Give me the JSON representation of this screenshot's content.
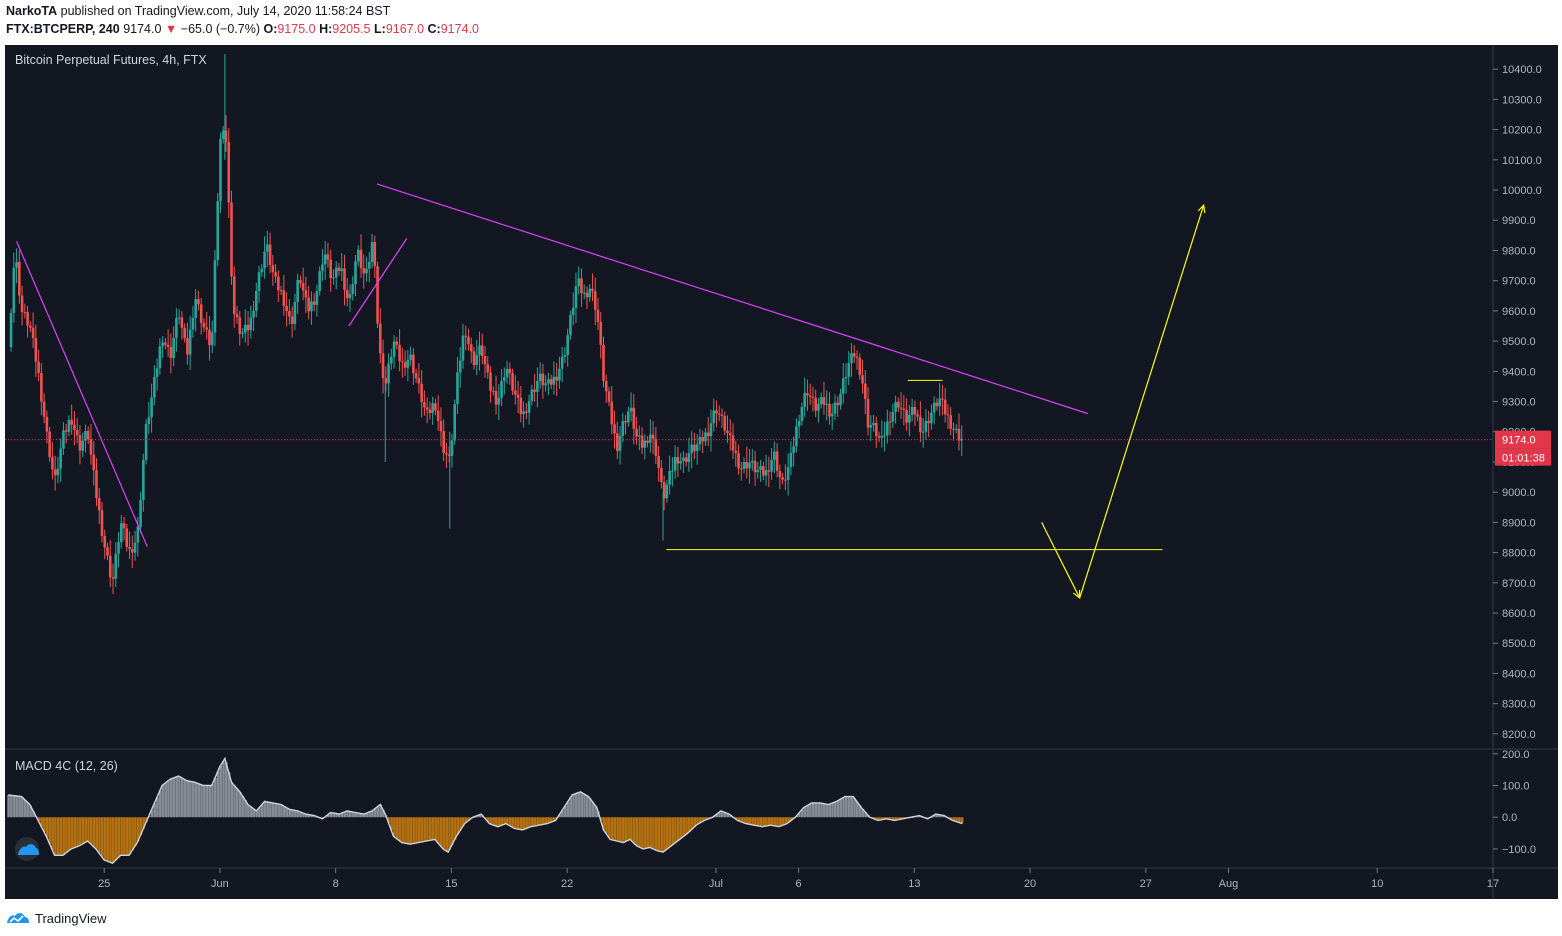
{
  "header": {
    "author": "NarkoTA",
    "published_text": "published on TradingView.com, July 14, 2020 11:58:24 BST",
    "symbol": "FTX:BTCPERP, 240",
    "last_price": "9174.0",
    "change": "−65.0 (−0.7%)",
    "o_label": "O:",
    "o_value": "9175.0",
    "h_label": "H:",
    "h_value": "9205.5",
    "l_label": "L:",
    "l_value": "9167.0",
    "c_label": "C:",
    "c_value": "9174.0"
  },
  "footer": {
    "brand": "TradingView"
  },
  "colors": {
    "background": "#131722",
    "up_candle": "#26a69a",
    "down_candle": "#ef5350",
    "trendline": "#e040fb",
    "projection": "#ffff00",
    "price_badge": "#e2374a"
  },
  "chart_data": {
    "type": "candlestick",
    "title": "Bitcoin Perpetual Futures, 4h, FTX",
    "price_axis": {
      "ticks": [
        10400,
        10300,
        10200,
        10100,
        10000,
        9900,
        9800,
        9700,
        9600,
        9500,
        9400,
        9300,
        9200,
        9100,
        9000,
        8900,
        8800,
        8700,
        8600,
        8500,
        8400,
        8300,
        8200
      ],
      "tick_labels": [
        "10400.0",
        "10300.0",
        "10200.0",
        "10100.0",
        "10000.0",
        "9900.0",
        "9800.0",
        "9700.0",
        "9600.0",
        "9500.0",
        "9400.0",
        "9300.0",
        "9200.0",
        "9100.0",
        "9000.0",
        "8900.0",
        "8800.0",
        "8700.0",
        "8600.0",
        "8500.0",
        "8400.0",
        "8300.0",
        "8200.0"
      ],
      "range": [
        8150,
        10480
      ]
    },
    "last_price_badge": "9174.0",
    "countdown_badge": "01:01:38",
    "last_price_value": 9174.0,
    "time_axis": {
      "labels": [
        "25",
        "Jun",
        "8",
        "15",
        "22",
        "Jul",
        "6",
        "13",
        "20",
        "27",
        "Aug",
        "10",
        "17"
      ],
      "label_days": [
        6,
        13,
        20,
        27,
        34,
        43,
        48,
        55,
        62,
        69,
        74,
        83,
        90
      ],
      "range_days": [
        0,
        90
      ]
    },
    "close_path": [
      [
        0.2,
        9480
      ],
      [
        0.6,
        9800
      ],
      [
        1.0,
        9600
      ],
      [
        1.5,
        9550
      ],
      [
        2.0,
        9400
      ],
      [
        2.5,
        9200
      ],
      [
        3.0,
        9030
      ],
      [
        3.5,
        9180
      ],
      [
        4.0,
        9250
      ],
      [
        4.5,
        9150
      ],
      [
        5.0,
        9200
      ],
      [
        5.5,
        9000
      ],
      [
        6.0,
        8830
      ],
      [
        6.5,
        8700
      ],
      [
        7.0,
        8900
      ],
      [
        7.5,
        8800
      ],
      [
        8.0,
        8850
      ],
      [
        8.5,
        9200
      ],
      [
        9.0,
        9350
      ],
      [
        9.5,
        9520
      ],
      [
        10.0,
        9450
      ],
      [
        10.5,
        9600
      ],
      [
        11.0,
        9450
      ],
      [
        11.5,
        9650
      ],
      [
        12.0,
        9550
      ],
      [
        12.5,
        9480
      ],
      [
        13.0,
        10150
      ],
      [
        13.3,
        10250
      ],
      [
        13.8,
        9600
      ],
      [
        14.3,
        9520
      ],
      [
        14.8,
        9550
      ],
      [
        15.3,
        9700
      ],
      [
        15.8,
        9820
      ],
      [
        16.3,
        9700
      ],
      [
        16.8,
        9650
      ],
      [
        17.3,
        9550
      ],
      [
        17.8,
        9720
      ],
      [
        18.3,
        9600
      ],
      [
        18.8,
        9650
      ],
      [
        19.3,
        9800
      ],
      [
        19.8,
        9700
      ],
      [
        20.3,
        9750
      ],
      [
        20.8,
        9620
      ],
      [
        21.3,
        9800
      ],
      [
        21.8,
        9700
      ],
      [
        22.3,
        9850
      ],
      [
        22.6,
        9480
      ],
      [
        23.0,
        9350
      ],
      [
        23.5,
        9500
      ],
      [
        24.0,
        9420
      ],
      [
        24.5,
        9450
      ],
      [
        25.0,
        9350
      ],
      [
        25.5,
        9250
      ],
      [
        26.0,
        9300
      ],
      [
        26.5,
        9150
      ],
      [
        26.9,
        9100
      ],
      [
        27.3,
        9350
      ],
      [
        27.8,
        9550
      ],
      [
        28.3,
        9430
      ],
      [
        28.8,
        9480
      ],
      [
        29.3,
        9350
      ],
      [
        29.8,
        9300
      ],
      [
        30.3,
        9420
      ],
      [
        30.8,
        9330
      ],
      [
        31.3,
        9250
      ],
      [
        31.8,
        9320
      ],
      [
        32.3,
        9380
      ],
      [
        32.8,
        9350
      ],
      [
        33.3,
        9380
      ],
      [
        33.8,
        9450
      ],
      [
        34.3,
        9600
      ],
      [
        34.6,
        9700
      ],
      [
        35.0,
        9650
      ],
      [
        35.4,
        9680
      ],
      [
        35.8,
        9600
      ],
      [
        36.2,
        9380
      ],
      [
        36.6,
        9260
      ],
      [
        37.0,
        9150
      ],
      [
        37.4,
        9230
      ],
      [
        37.8,
        9280
      ],
      [
        38.2,
        9180
      ],
      [
        38.6,
        9150
      ],
      [
        39.0,
        9200
      ],
      [
        39.4,
        9130
      ],
      [
        39.8,
        8980
      ],
      [
        40.2,
        9050
      ],
      [
        40.6,
        9120
      ],
      [
        41.0,
        9100
      ],
      [
        41.5,
        9140
      ],
      [
        42.0,
        9160
      ],
      [
        42.5,
        9200
      ],
      [
        43.0,
        9280
      ],
      [
        43.5,
        9220
      ],
      [
        44.0,
        9150
      ],
      [
        44.5,
        9080
      ],
      [
        45.0,
        9100
      ],
      [
        45.5,
        9070
      ],
      [
        46.0,
        9060
      ],
      [
        46.5,
        9130
      ],
      [
        47.0,
        9020
      ],
      [
        47.5,
        9100
      ],
      [
        48.0,
        9250
      ],
      [
        48.5,
        9340
      ],
      [
        49.0,
        9280
      ],
      [
        49.5,
        9300
      ],
      [
        50.0,
        9260
      ],
      [
        50.5,
        9320
      ],
      [
        51.0,
        9420
      ],
      [
        51.4,
        9460
      ],
      [
        51.8,
        9390
      ],
      [
        52.2,
        9230
      ],
      [
        52.6,
        9210
      ],
      [
        53.0,
        9160
      ],
      [
        53.5,
        9250
      ],
      [
        54.0,
        9300
      ],
      [
        54.5,
        9240
      ],
      [
        55.0,
        9270
      ],
      [
        55.5,
        9200
      ],
      [
        56.0,
        9260
      ],
      [
        56.5,
        9310
      ],
      [
        57.0,
        9250
      ],
      [
        57.5,
        9200
      ],
      [
        57.9,
        9174
      ]
    ],
    "spikes": [
      {
        "day": 13.3,
        "high": 10450,
        "low": 10100
      },
      {
        "day": 26.9,
        "high": 9200,
        "low": 8880
      },
      {
        "day": 23.0,
        "high": 9360,
        "low": 9100
      },
      {
        "day": 39.8,
        "high": 9000,
        "low": 8840
      }
    ],
    "trendlines": [
      {
        "from": [
          0.7,
          9830
        ],
        "to": [
          8.6,
          8820
        ]
      },
      {
        "from": [
          22.5,
          10020
        ],
        "to": [
          65.5,
          9260
        ]
      },
      {
        "from": [
          20.8,
          9550
        ],
        "to": [
          24.3,
          9840
        ]
      }
    ],
    "projection": {
      "horizontal_level": 8810,
      "horizontal_from_day": 40.0,
      "horizontal_to_day": 70.0,
      "down_leg": [
        [
          62.7,
          8900
        ],
        [
          65.0,
          8650
        ]
      ],
      "up_leg": [
        [
          65.0,
          8650
        ],
        [
          72.5,
          9950
        ]
      ],
      "resistance_segment": {
        "from": [
          54.6,
          9370
        ],
        "to": [
          56.7,
          9370
        ]
      }
    },
    "indicator": {
      "name": "MACD 4C (12, 26)",
      "axis_ticks": [
        200,
        100,
        0,
        -100
      ],
      "axis_labels": [
        "200.0",
        "100.0",
        "0.0",
        "−100.0"
      ],
      "range": [
        -160,
        215
      ],
      "values": [
        [
          0.2,
          70
        ],
        [
          1.0,
          65
        ],
        [
          1.5,
          40
        ],
        [
          2.0,
          -10
        ],
        [
          2.5,
          -60
        ],
        [
          3.0,
          -120
        ],
        [
          3.5,
          -120
        ],
        [
          4.0,
          -100
        ],
        [
          4.5,
          -90
        ],
        [
          5.0,
          -75
        ],
        [
          5.5,
          -100
        ],
        [
          6.0,
          -135
        ],
        [
          6.5,
          -145
        ],
        [
          7.0,
          -120
        ],
        [
          7.5,
          -120
        ],
        [
          8.0,
          -80
        ],
        [
          8.5,
          -20
        ],
        [
          9.0,
          40
        ],
        [
          9.5,
          100
        ],
        [
          10.0,
          120
        ],
        [
          10.5,
          130
        ],
        [
          11.0,
          115
        ],
        [
          11.5,
          110
        ],
        [
          12.0,
          100
        ],
        [
          12.5,
          100
        ],
        [
          13.0,
          160
        ],
        [
          13.3,
          185
        ],
        [
          13.7,
          110
        ],
        [
          14.2,
          80
        ],
        [
          14.7,
          40
        ],
        [
          15.2,
          20
        ],
        [
          15.7,
          50
        ],
        [
          16.2,
          45
        ],
        [
          16.7,
          40
        ],
        [
          17.2,
          25
        ],
        [
          17.7,
          20
        ],
        [
          18.2,
          10
        ],
        [
          18.7,
          5
        ],
        [
          19.2,
          -5
        ],
        [
          19.7,
          15
        ],
        [
          20.2,
          10
        ],
        [
          20.7,
          20
        ],
        [
          21.2,
          15
        ],
        [
          21.7,
          10
        ],
        [
          22.2,
          20
        ],
        [
          22.7,
          40
        ],
        [
          23.0,
          10
        ],
        [
          23.5,
          -60
        ],
        [
          24.0,
          -80
        ],
        [
          24.5,
          -85
        ],
        [
          25.0,
          -80
        ],
        [
          25.5,
          -75
        ],
        [
          26.0,
          -70
        ],
        [
          26.5,
          -100
        ],
        [
          26.8,
          -110
        ],
        [
          27.3,
          -60
        ],
        [
          27.8,
          -20
        ],
        [
          28.3,
          0
        ],
        [
          28.8,
          10
        ],
        [
          29.3,
          -20
        ],
        [
          29.8,
          -30
        ],
        [
          30.3,
          -20
        ],
        [
          30.8,
          -35
        ],
        [
          31.3,
          -40
        ],
        [
          31.8,
          -30
        ],
        [
          32.3,
          -25
        ],
        [
          32.8,
          -20
        ],
        [
          33.3,
          -10
        ],
        [
          33.8,
          30
        ],
        [
          34.3,
          70
        ],
        [
          34.8,
          80
        ],
        [
          35.3,
          65
        ],
        [
          35.8,
          30
        ],
        [
          36.2,
          -40
        ],
        [
          36.6,
          -70
        ],
        [
          37.0,
          -75
        ],
        [
          37.4,
          -80
        ],
        [
          37.8,
          -70
        ],
        [
          38.2,
          -90
        ],
        [
          38.6,
          -100
        ],
        [
          39.0,
          -95
        ],
        [
          39.4,
          -105
        ],
        [
          39.8,
          -110
        ],
        [
          40.3,
          -90
        ],
        [
          40.8,
          -70
        ],
        [
          41.3,
          -50
        ],
        [
          41.8,
          -25
        ],
        [
          42.3,
          -10
        ],
        [
          42.8,
          0
        ],
        [
          43.3,
          20
        ],
        [
          43.8,
          10
        ],
        [
          44.3,
          -10
        ],
        [
          44.8,
          -20
        ],
        [
          45.3,
          -25
        ],
        [
          45.8,
          -30
        ],
        [
          46.3,
          -25
        ],
        [
          46.8,
          -30
        ],
        [
          47.3,
          -20
        ],
        [
          47.8,
          0
        ],
        [
          48.3,
          30
        ],
        [
          48.8,
          45
        ],
        [
          49.3,
          45
        ],
        [
          49.8,
          40
        ],
        [
          50.3,
          50
        ],
        [
          50.8,
          65
        ],
        [
          51.3,
          65
        ],
        [
          51.8,
          30
        ],
        [
          52.3,
          0
        ],
        [
          52.8,
          -10
        ],
        [
          53.3,
          -5
        ],
        [
          53.8,
          -10
        ],
        [
          54.3,
          -5
        ],
        [
          54.8,
          0
        ],
        [
          55.3,
          5
        ],
        [
          55.8,
          -5
        ],
        [
          56.3,
          10
        ],
        [
          56.8,
          5
        ],
        [
          57.3,
          -10
        ],
        [
          57.9,
          -20
        ]
      ]
    }
  }
}
